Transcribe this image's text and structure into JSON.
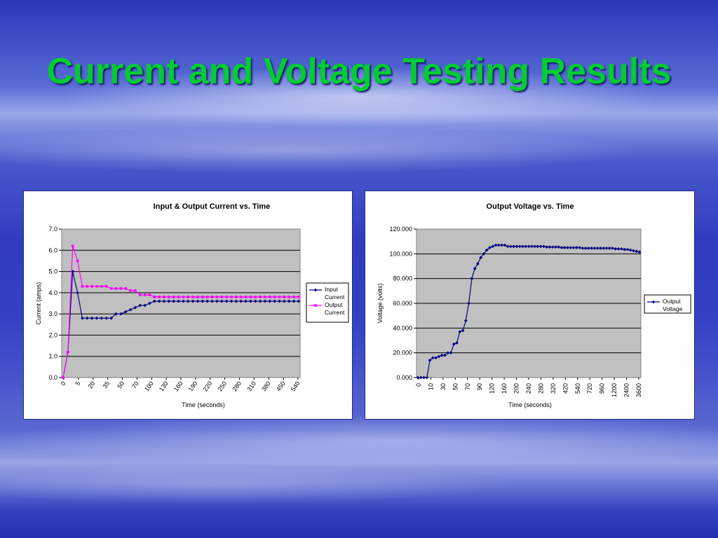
{
  "slide": {
    "title": "Current and Voltage Testing Results"
  },
  "chart_data": [
    {
      "type": "line",
      "title": "Input & Output Current vs. Time",
      "xlabel": "Time (seconds)",
      "ylabel": "Current (amps)",
      "ylim": [
        0,
        7
      ],
      "yticks": [
        "0.0",
        "1.0",
        "2.0",
        "3.0",
        "4.0",
        "5.0",
        "6.0",
        "7.0"
      ],
      "x_tick_labels": [
        "0",
        "5",
        "20",
        "35",
        "50",
        "70",
        "100",
        "130",
        "160",
        "190",
        "220",
        "250",
        "280",
        "310",
        "380",
        "450",
        "540"
      ],
      "grid": true,
      "legend": "right",
      "plot_color": "#c0c0c0",
      "series": [
        {
          "name": "Input Current",
          "color": "#000080",
          "values": [
            0,
            1.2,
            5.0,
            4.0,
            2.8,
            2.8,
            2.8,
            2.8,
            2.8,
            2.8,
            2.8,
            3.0,
            3.0,
            3.1,
            3.2,
            3.3,
            3.4,
            3.4,
            3.5,
            3.6,
            3.6,
            3.6,
            3.6,
            3.6,
            3.6,
            3.6,
            3.6,
            3.6,
            3.6,
            3.6,
            3.6,
            3.6,
            3.6,
            3.6,
            3.6,
            3.6,
            3.6,
            3.6,
            3.6,
            3.6,
            3.6,
            3.6,
            3.6,
            3.6,
            3.6,
            3.6,
            3.6,
            3.6,
            3.6,
            3.6
          ]
        },
        {
          "name": "Output Current",
          "color": "#ff00ff",
          "values": [
            0,
            1.2,
            6.2,
            5.5,
            4.3,
            4.3,
            4.3,
            4.3,
            4.3,
            4.3,
            4.2,
            4.2,
            4.2,
            4.2,
            4.1,
            4.1,
            3.9,
            3.9,
            3.9,
            3.8,
            3.8,
            3.8,
            3.8,
            3.8,
            3.8,
            3.8,
            3.8,
            3.8,
            3.8,
            3.8,
            3.8,
            3.8,
            3.8,
            3.8,
            3.8,
            3.8,
            3.8,
            3.8,
            3.8,
            3.8,
            3.8,
            3.8,
            3.8,
            3.8,
            3.8,
            3.8,
            3.8,
            3.8,
            3.8,
            3.8
          ]
        }
      ]
    },
    {
      "type": "line",
      "title": "Output Voltage vs. Time",
      "xlabel": "Time (seconds)",
      "ylabel": "Voltage (volts)",
      "ylim": [
        0,
        120
      ],
      "yticks": [
        "0.000",
        "20.000",
        "40.000",
        "60.000",
        "80.000",
        "100.000",
        "120.000"
      ],
      "x_tick_labels": [
        "0",
        "10",
        "30",
        "50",
        "70",
        "90",
        "120",
        "160",
        "200",
        "240",
        "280",
        "320",
        "420",
        "540",
        "720",
        "960",
        "1200",
        "2400",
        "3600"
      ],
      "grid": true,
      "legend": "right",
      "plot_color": "#c0c0c0",
      "series": [
        {
          "name": "Output Voltage",
          "color": "#000080",
          "values": [
            0,
            0,
            0,
            0,
            14,
            16,
            16,
            17,
            18,
            18,
            20,
            20,
            27,
            28,
            37,
            38,
            46,
            60,
            80,
            88,
            92,
            97,
            100,
            103,
            105,
            106,
            107,
            107,
            107,
            107,
            106,
            106,
            106,
            106,
            106,
            106,
            106,
            106,
            106,
            106,
            106,
            106,
            106,
            105.5,
            105.5,
            105.5,
            105.5,
            105.5,
            105,
            105,
            105,
            105,
            105,
            105,
            105,
            104.5,
            104.5,
            104.5,
            104.5,
            104.5,
            104.5,
            104.5,
            104.5,
            104.5,
            104.5,
            104.5,
            104,
            104,
            104,
            103.5,
            103.5,
            103,
            102.5,
            102,
            101.5
          ]
        }
      ]
    }
  ]
}
